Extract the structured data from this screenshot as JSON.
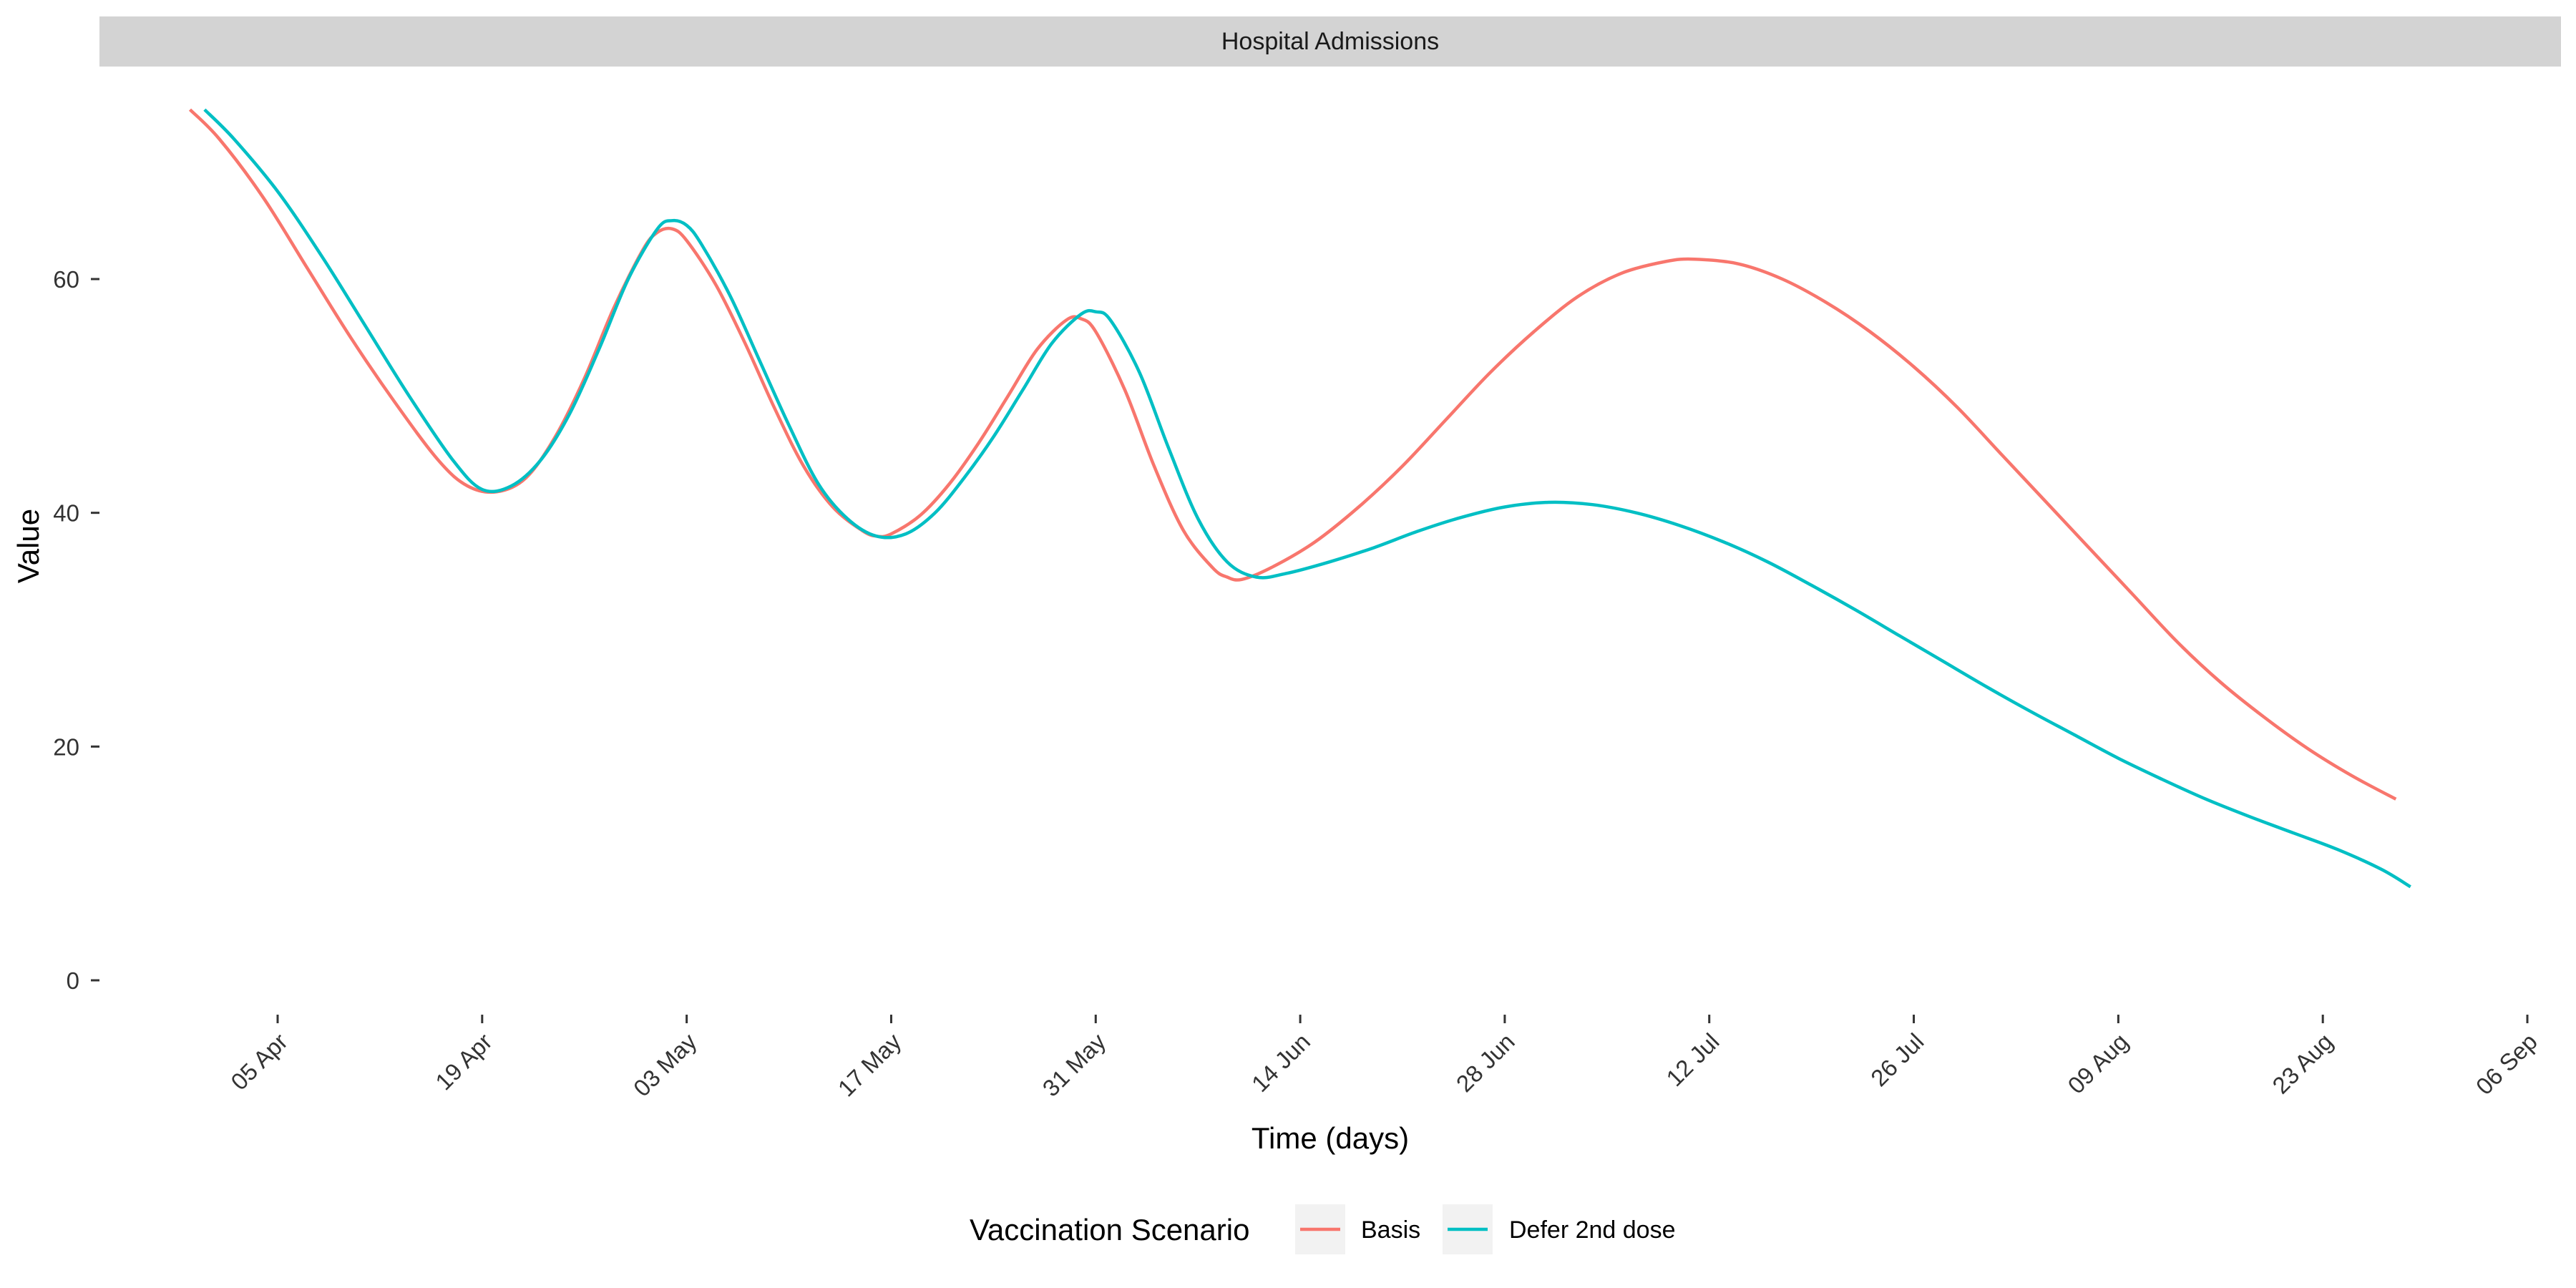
{
  "chart_data": {
    "type": "line",
    "panel_title": "Hospital Admissions",
    "xlabel": "Time (days)",
    "ylabel": "Value",
    "x_unit": "date",
    "xlim": [
      "2021-03-27",
      "2021-09-06"
    ],
    "x_ticks": [
      {
        "date": "2021-04-05",
        "label": "05 Apr"
      },
      {
        "date": "2021-04-19",
        "label": "19 Apr"
      },
      {
        "date": "2021-05-03",
        "label": "03 May"
      },
      {
        "date": "2021-05-17",
        "label": "17 May"
      },
      {
        "date": "2021-05-31",
        "label": "31 May"
      },
      {
        "date": "2021-06-14",
        "label": "14 Jun"
      },
      {
        "date": "2021-06-28",
        "label": "28 Jun"
      },
      {
        "date": "2021-07-12",
        "label": "12 Jul"
      },
      {
        "date": "2021-07-26",
        "label": "26 Jul"
      },
      {
        "date": "2021-08-09",
        "label": "09 Aug"
      },
      {
        "date": "2021-08-23",
        "label": "23 Aug"
      },
      {
        "date": "2021-09-06",
        "label": "06 Sep"
      }
    ],
    "ylim": [
      -3,
      80
    ],
    "y_ticks": [
      0,
      20,
      40,
      60
    ],
    "grid": false,
    "legend": {
      "title": "Vaccination Scenario",
      "position": "bottom"
    },
    "series": [
      {
        "name": "Basis",
        "color": "#F8766D",
        "points": [
          [
            "2021-03-30",
            74.5
          ],
          [
            "2021-04-01",
            72.0
          ],
          [
            "2021-04-04",
            67.0
          ],
          [
            "2021-04-07",
            61.0
          ],
          [
            "2021-04-10",
            55.0
          ],
          [
            "2021-04-13",
            49.5
          ],
          [
            "2021-04-16",
            44.5
          ],
          [
            "2021-04-18",
            42.3
          ],
          [
            "2021-04-20",
            41.8
          ],
          [
            "2021-04-22",
            43.0
          ],
          [
            "2021-04-24",
            46.5
          ],
          [
            "2021-04-26",
            51.5
          ],
          [
            "2021-04-28",
            57.5
          ],
          [
            "2021-04-30",
            62.5
          ],
          [
            "2021-05-01",
            64.0
          ],
          [
            "2021-05-02",
            64.3
          ],
          [
            "2021-05-03",
            63.3
          ],
          [
            "2021-05-05",
            59.5
          ],
          [
            "2021-05-07",
            54.5
          ],
          [
            "2021-05-09",
            49.0
          ],
          [
            "2021-05-11",
            44.0
          ],
          [
            "2021-05-13",
            40.5
          ],
          [
            "2021-05-15",
            38.5
          ],
          [
            "2021-05-16",
            38.0
          ],
          [
            "2021-05-17",
            38.2
          ],
          [
            "2021-05-19",
            39.8
          ],
          [
            "2021-05-21",
            42.5
          ],
          [
            "2021-05-23",
            46.0
          ],
          [
            "2021-05-25",
            50.0
          ],
          [
            "2021-05-27",
            54.0
          ],
          [
            "2021-05-29",
            56.5
          ],
          [
            "2021-05-30",
            56.6
          ],
          [
            "2021-05-31",
            55.5
          ],
          [
            "2021-06-02",
            50.5
          ],
          [
            "2021-06-04",
            44.0
          ],
          [
            "2021-06-06",
            38.5
          ],
          [
            "2021-06-08",
            35.3
          ],
          [
            "2021-06-09",
            34.5
          ],
          [
            "2021-06-10",
            34.3
          ],
          [
            "2021-06-12",
            35.3
          ],
          [
            "2021-06-15",
            37.5
          ],
          [
            "2021-06-18",
            40.5
          ],
          [
            "2021-06-21",
            44.0
          ],
          [
            "2021-06-24",
            48.0
          ],
          [
            "2021-06-27",
            52.0
          ],
          [
            "2021-06-30",
            55.5
          ],
          [
            "2021-07-03",
            58.5
          ],
          [
            "2021-07-06",
            60.5
          ],
          [
            "2021-07-09",
            61.5
          ],
          [
            "2021-07-11",
            61.7
          ],
          [
            "2021-07-14",
            61.3
          ],
          [
            "2021-07-17",
            60.0
          ],
          [
            "2021-07-20",
            58.0
          ],
          [
            "2021-07-23",
            55.5
          ],
          [
            "2021-07-26",
            52.5
          ],
          [
            "2021-07-29",
            49.0
          ],
          [
            "2021-08-01",
            45.0
          ],
          [
            "2021-08-04",
            41.0
          ],
          [
            "2021-08-07",
            37.0
          ],
          [
            "2021-08-10",
            33.0
          ],
          [
            "2021-08-13",
            29.0
          ],
          [
            "2021-08-16",
            25.5
          ],
          [
            "2021-08-19",
            22.5
          ],
          [
            "2021-08-22",
            19.8
          ],
          [
            "2021-08-25",
            17.5
          ],
          [
            "2021-08-28",
            15.5
          ]
        ]
      },
      {
        "name": "Defer 2nd dose",
        "color": "#00BFC4",
        "points": [
          [
            "2021-03-31",
            74.5
          ],
          [
            "2021-04-02",
            72.0
          ],
          [
            "2021-04-05",
            67.5
          ],
          [
            "2021-04-08",
            62.0
          ],
          [
            "2021-04-11",
            56.0
          ],
          [
            "2021-04-14",
            50.0
          ],
          [
            "2021-04-17",
            44.5
          ],
          [
            "2021-04-19",
            42.0
          ],
          [
            "2021-04-21",
            42.3
          ],
          [
            "2021-04-23",
            44.5
          ],
          [
            "2021-04-25",
            48.5
          ],
          [
            "2021-04-27",
            54.0
          ],
          [
            "2021-04-29",
            60.0
          ],
          [
            "2021-05-01",
            64.3
          ],
          [
            "2021-05-02",
            65.0
          ],
          [
            "2021-05-03",
            64.6
          ],
          [
            "2021-05-04",
            63.0
          ],
          [
            "2021-05-06",
            58.5
          ],
          [
            "2021-05-08",
            53.0
          ],
          [
            "2021-05-10",
            47.5
          ],
          [
            "2021-05-12",
            42.5
          ],
          [
            "2021-05-14",
            39.5
          ],
          [
            "2021-05-16",
            38.0
          ],
          [
            "2021-05-18",
            38.2
          ],
          [
            "2021-05-20",
            40.0
          ],
          [
            "2021-05-22",
            43.0
          ],
          [
            "2021-05-24",
            46.5
          ],
          [
            "2021-05-26",
            50.5
          ],
          [
            "2021-05-28",
            54.5
          ],
          [
            "2021-05-30",
            57.0
          ],
          [
            "2021-05-31",
            57.2
          ],
          [
            "2021-06-01",
            56.5
          ],
          [
            "2021-06-03",
            52.0
          ],
          [
            "2021-06-05",
            45.5
          ],
          [
            "2021-06-07",
            39.5
          ],
          [
            "2021-06-09",
            35.8
          ],
          [
            "2021-06-11",
            34.5
          ],
          [
            "2021-06-13",
            34.8
          ],
          [
            "2021-06-16",
            35.8
          ],
          [
            "2021-06-19",
            37.0
          ],
          [
            "2021-06-22",
            38.4
          ],
          [
            "2021-06-25",
            39.6
          ],
          [
            "2021-06-28",
            40.5
          ],
          [
            "2021-07-01",
            40.9
          ],
          [
            "2021-07-04",
            40.7
          ],
          [
            "2021-07-07",
            40.0
          ],
          [
            "2021-07-10",
            38.9
          ],
          [
            "2021-07-13",
            37.5
          ],
          [
            "2021-07-16",
            35.8
          ],
          [
            "2021-07-19",
            33.8
          ],
          [
            "2021-07-22",
            31.7
          ],
          [
            "2021-07-25",
            29.5
          ],
          [
            "2021-07-28",
            27.3
          ],
          [
            "2021-07-31",
            25.1
          ],
          [
            "2021-08-03",
            23.0
          ],
          [
            "2021-08-06",
            21.0
          ],
          [
            "2021-08-09",
            19.0
          ],
          [
            "2021-08-12",
            17.2
          ],
          [
            "2021-08-15",
            15.5
          ],
          [
            "2021-08-18",
            14.0
          ],
          [
            "2021-08-21",
            12.6
          ],
          [
            "2021-08-24",
            11.2
          ],
          [
            "2021-08-27",
            9.5
          ],
          [
            "2021-08-29",
            8.0
          ]
        ]
      }
    ]
  }
}
